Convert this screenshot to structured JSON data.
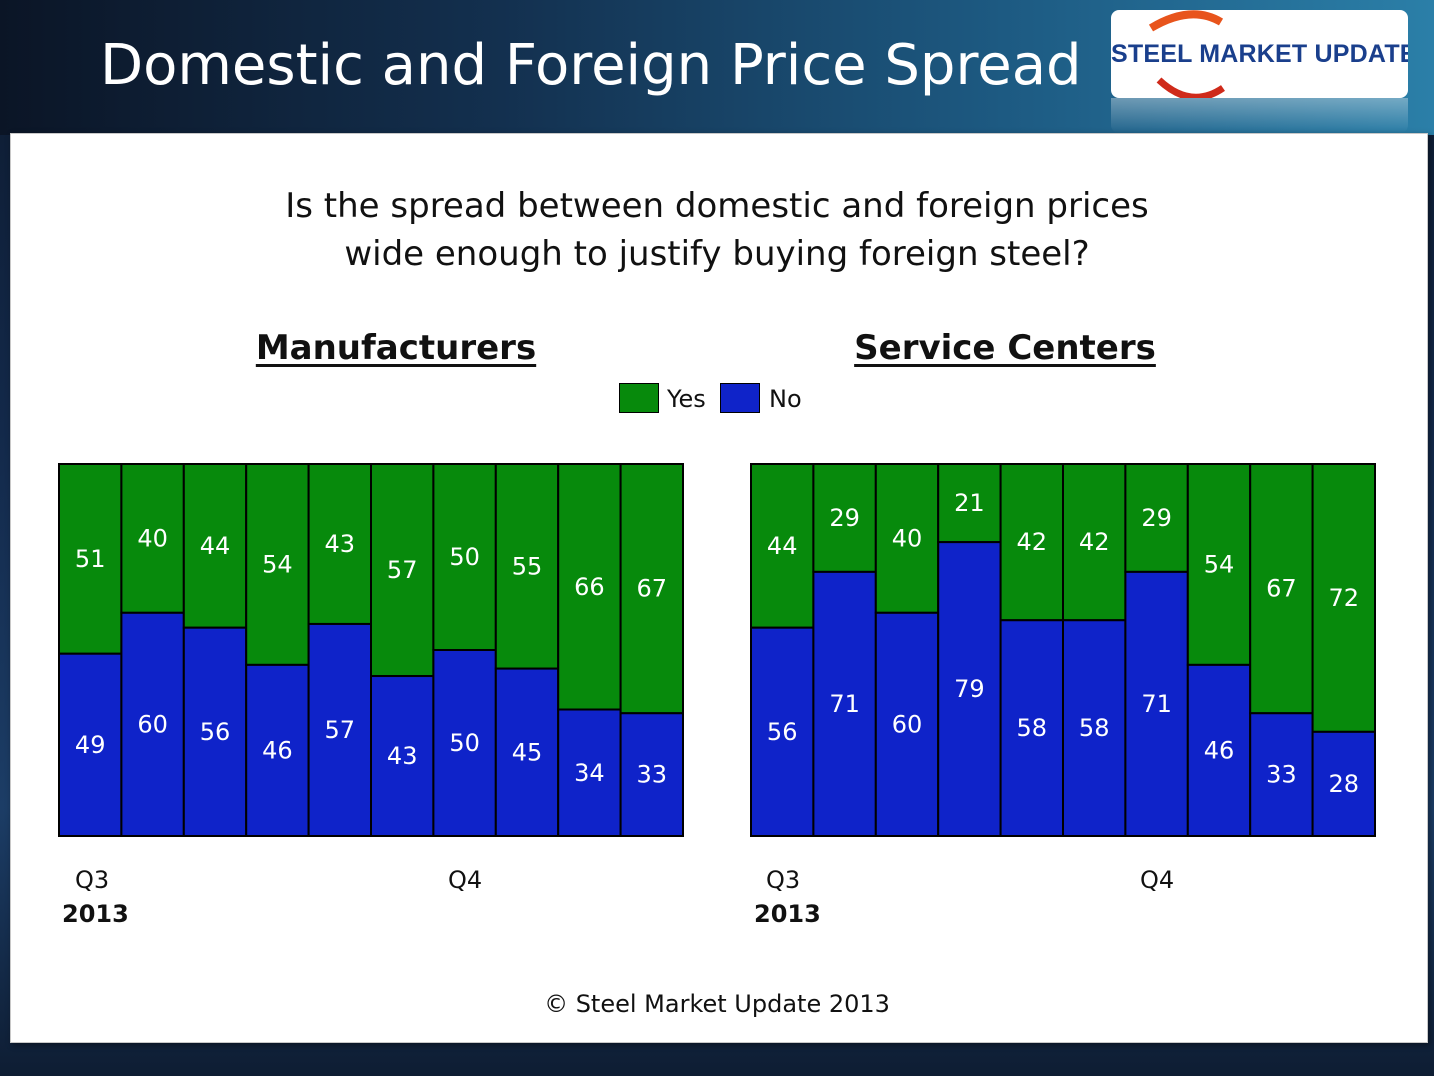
{
  "slide": {
    "title": "Domestic and Foreign Price Spread",
    "logo_text": "STEEL MARKET UPDATE",
    "question_line1": "Is the spread between domestic and foreign prices",
    "question_line2": "wide enough to justify buying foreign steel?",
    "copyright": "© Steel Market Update 2013"
  },
  "legend": {
    "yes_label": "Yes",
    "no_label": "No"
  },
  "colors": {
    "yes": "#078a0c",
    "no": "#0f23c9",
    "label": "#ffffff",
    "border": "#000000"
  },
  "chart_data": [
    {
      "type": "bar",
      "stacked": true,
      "title": "Manufacturers",
      "series": [
        {
          "name": "No",
          "values": [
            49,
            60,
            56,
            46,
            57,
            43,
            50,
            45,
            34,
            33
          ]
        },
        {
          "name": "Yes",
          "values": [
            51,
            40,
            44,
            54,
            43,
            57,
            50,
            55,
            66,
            67
          ]
        }
      ],
      "ylim": [
        0,
        100
      ],
      "x_labels": {
        "q3": "Q3",
        "q4": "Q4",
        "year": "2013"
      },
      "legend_position": "top-center"
    },
    {
      "type": "bar",
      "stacked": true,
      "title": "Service Centers",
      "series": [
        {
          "name": "No",
          "values": [
            56,
            71,
            60,
            79,
            58,
            58,
            71,
            46,
            33,
            28
          ]
        },
        {
          "name": "Yes",
          "values": [
            44,
            29,
            40,
            21,
            42,
            42,
            29,
            54,
            67,
            72
          ]
        }
      ],
      "ylim": [
        0,
        100
      ],
      "x_labels": {
        "q3": "Q3",
        "q4": "Q4",
        "year": "2013"
      },
      "legend_position": "top-center"
    }
  ]
}
